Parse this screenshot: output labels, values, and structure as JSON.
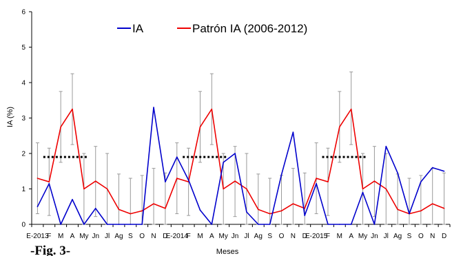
{
  "chart_data": {
    "type": "line",
    "ylabel": "IA (%)",
    "xlabel": "Meses",
    "caption": "-Fig. 3-",
    "ylim": [
      0,
      6
    ],
    "yticks": [
      "0",
      "1",
      "2",
      "3",
      "4",
      "5",
      "6"
    ],
    "categories": [
      "E-2013",
      "F",
      "M",
      "A",
      "My",
      "Jn",
      "Jl",
      "Ag",
      "S",
      "O",
      "N",
      "D",
      "E-2014",
      "F",
      "M",
      "A",
      "My",
      "Jn",
      "Jl",
      "Ag",
      "S",
      "O",
      "N",
      "D",
      "E-2015",
      "F",
      "M",
      "A",
      "My",
      "Jn",
      "Jl",
      "Ag",
      "S",
      "O",
      "N",
      "D"
    ],
    "legend": {
      "position": "top-center"
    },
    "series": [
      {
        "name": "IA",
        "color": "#0000cc",
        "values": [
          0.5,
          1.15,
          0,
          0.7,
          0,
          0.45,
          0,
          0,
          0,
          0,
          3.3,
          1.2,
          1.9,
          1.25,
          0.4,
          0,
          1.75,
          2.0,
          0.35,
          0,
          0,
          1.4,
          2.6,
          0.25,
          1.15,
          0,
          0,
          0,
          0.9,
          0,
          2.2,
          1.45,
          0.3,
          1.2,
          1.6,
          1.5
        ]
      },
      {
        "name": "Patrón IA (2006-2012)",
        "color": "#ee0000",
        "values": [
          1.3,
          1.2,
          2.75,
          3.25,
          1.0,
          1.22,
          1.0,
          0.42,
          0.3,
          0.38,
          0.58,
          0.45,
          1.3,
          1.2,
          2.75,
          3.25,
          1.0,
          1.22,
          1.0,
          0.42,
          0.3,
          0.38,
          0.58,
          0.45,
          1.3,
          1.2,
          2.75,
          3.25,
          1.0,
          1.22,
          1.0,
          0.42,
          0.3,
          0.38,
          0.58,
          0.45
        ],
        "error_upper": [
          2.3,
          2.15,
          3.75,
          4.25,
          2.0,
          2.2,
          2.0,
          1.42,
          1.3,
          1.38,
          1.58,
          1.45,
          2.3,
          2.15,
          3.75,
          4.25,
          2.0,
          2.2,
          2.0,
          1.42,
          1.3,
          1.38,
          1.58,
          1.45,
          2.3,
          2.15,
          3.75,
          4.3,
          2.0,
          2.2,
          2.0,
          1.42,
          1.3,
          1.38,
          1.58,
          1.45
        ],
        "error_lower": [
          0.3,
          0.25,
          1.75,
          2.25,
          0,
          0.22,
          0,
          0,
          0,
          0,
          0,
          0,
          0.3,
          0.25,
          1.75,
          2.25,
          0,
          0.22,
          0,
          0,
          0,
          0,
          0,
          0,
          0.3,
          0.25,
          1.75,
          2.25,
          0,
          0.22,
          0,
          0,
          0,
          0,
          0,
          0
        ]
      }
    ],
    "threshold_lines": [
      {
        "x_start": 1,
        "x_end": 4,
        "y": 1.9
      },
      {
        "x_start": 13,
        "x_end": 16,
        "y": 1.9
      },
      {
        "x_start": 25,
        "x_end": 28,
        "y": 1.9
      }
    ]
  }
}
